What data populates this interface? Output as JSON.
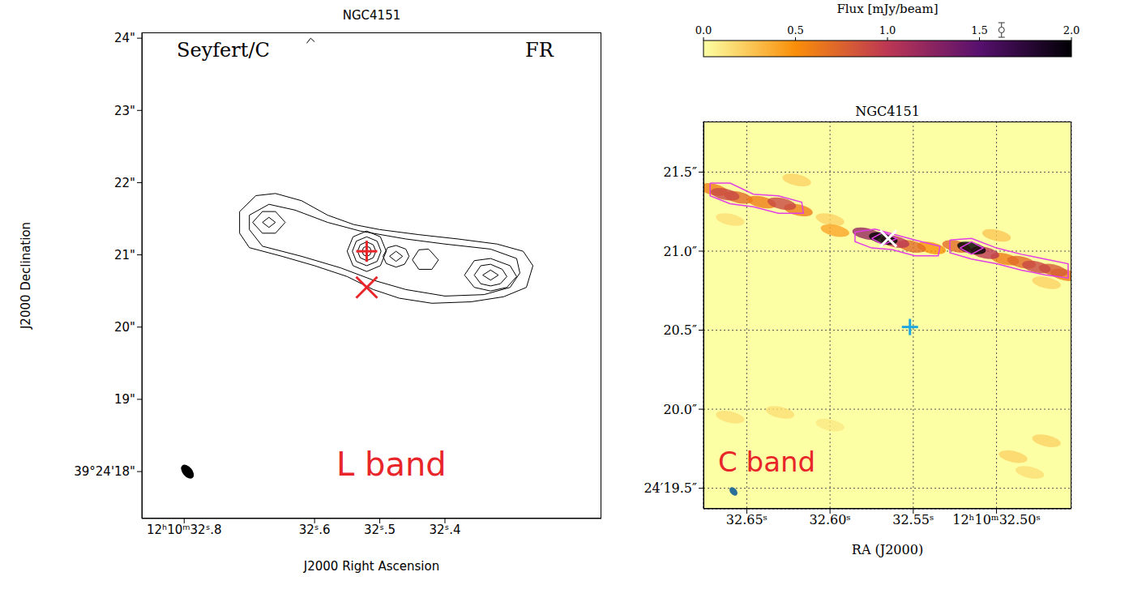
{
  "chart_data": [
    {
      "type": "contour",
      "title": "NGC4151",
      "annotations": [
        "Seyfert/C",
        "FR",
        "L band"
      ],
      "x_label": "J2000 Right Ascension",
      "y_label": "J2000 Declination",
      "xlim": [
        32.865,
        32.16
      ],
      "ylim": [
        17.35,
        24.08
      ],
      "xticks": [
        {
          "value": 32.8,
          "label": "12ʰ10ᵐ32ˢ.8"
        },
        {
          "value": 32.6,
          "label": "32ˢ.6"
        },
        {
          "value": 32.5,
          "label": "32ˢ.5"
        },
        {
          "value": 32.4,
          "label": "32ˢ.4"
        }
      ],
      "yticks": [
        {
          "value": 18,
          "label": "39°24'18\""
        },
        {
          "value": 19,
          "label": "19\""
        },
        {
          "value": 20,
          "label": "20\""
        },
        {
          "value": 21,
          "label": "21\""
        },
        {
          "value": 22,
          "label": "22\""
        },
        {
          "value": 23,
          "label": "23\""
        },
        {
          "value": 24,
          "label": "24\""
        }
      ],
      "color": "#000000",
      "contours": [
        [
          [
            32.715,
            21.6
          ],
          [
            32.69,
            21.82
          ],
          [
            32.66,
            21.85
          ],
          [
            32.62,
            21.75
          ],
          [
            32.58,
            21.55
          ],
          [
            32.54,
            21.42
          ],
          [
            32.5,
            21.35
          ],
          [
            32.44,
            21.28
          ],
          [
            32.38,
            21.22
          ],
          [
            32.32,
            21.15
          ],
          [
            32.28,
            21.05
          ],
          [
            32.265,
            20.85
          ],
          [
            32.275,
            20.55
          ],
          [
            32.31,
            20.42
          ],
          [
            32.36,
            20.35
          ],
          [
            32.42,
            20.33
          ],
          [
            32.47,
            20.4
          ],
          [
            32.51,
            20.52
          ],
          [
            32.55,
            20.7
          ],
          [
            32.6,
            20.85
          ],
          [
            32.65,
            20.98
          ],
          [
            32.7,
            21.1
          ],
          [
            32.715,
            21.3
          ],
          [
            32.715,
            21.6
          ]
        ],
        [
          [
            32.7,
            21.55
          ],
          [
            32.67,
            21.7
          ],
          [
            32.63,
            21.62
          ],
          [
            32.58,
            21.45
          ],
          [
            32.53,
            21.33
          ],
          [
            32.46,
            21.22
          ],
          [
            32.4,
            21.15
          ],
          [
            32.33,
            21.08
          ],
          [
            32.29,
            20.95
          ],
          [
            32.285,
            20.75
          ],
          [
            32.3,
            20.55
          ],
          [
            32.34,
            20.45
          ],
          [
            32.4,
            20.43
          ],
          [
            32.46,
            20.52
          ],
          [
            32.51,
            20.65
          ],
          [
            32.56,
            20.82
          ],
          [
            32.62,
            20.98
          ],
          [
            32.68,
            21.12
          ],
          [
            32.7,
            21.35
          ],
          [
            32.7,
            21.55
          ]
        ],
        [
          [
            32.695,
            21.45
          ],
          [
            32.68,
            21.6
          ],
          [
            32.66,
            21.6
          ],
          [
            32.645,
            21.45
          ],
          [
            32.66,
            21.3
          ],
          [
            32.68,
            21.3
          ],
          [
            32.695,
            21.45
          ]
        ],
        [
          [
            32.68,
            21.45
          ],
          [
            32.67,
            21.52
          ],
          [
            32.66,
            21.45
          ],
          [
            32.67,
            21.38
          ],
          [
            32.68,
            21.45
          ]
        ],
        [
          [
            32.55,
            21.05
          ],
          [
            32.541,
            21.25
          ],
          [
            32.52,
            21.33
          ],
          [
            32.499,
            21.25
          ],
          [
            32.49,
            21.05
          ],
          [
            32.499,
            20.85
          ],
          [
            32.52,
            20.77
          ],
          [
            32.541,
            20.85
          ],
          [
            32.55,
            21.05
          ]
        ],
        [
          [
            32.542,
            21.05
          ],
          [
            32.536,
            21.19
          ],
          [
            32.52,
            21.25
          ],
          [
            32.504,
            21.19
          ],
          [
            32.498,
            21.05
          ],
          [
            32.504,
            20.91
          ],
          [
            32.52,
            20.85
          ],
          [
            32.536,
            20.91
          ],
          [
            32.542,
            21.05
          ]
        ],
        [
          [
            32.534,
            21.05
          ],
          [
            32.53,
            21.14
          ],
          [
            32.52,
            21.18
          ],
          [
            32.51,
            21.14
          ],
          [
            32.506,
            21.05
          ],
          [
            32.51,
            20.96
          ],
          [
            32.52,
            20.92
          ],
          [
            32.53,
            20.96
          ],
          [
            32.534,
            21.05
          ]
        ],
        [
          [
            32.527,
            21.05
          ],
          [
            32.525,
            21.1
          ],
          [
            32.52,
            21.12
          ],
          [
            32.515,
            21.1
          ],
          [
            32.513,
            21.05
          ],
          [
            32.515,
            21.0
          ],
          [
            32.52,
            20.98
          ],
          [
            32.525,
            21.0
          ],
          [
            32.527,
            21.05
          ]
        ],
        [
          [
            32.495,
            20.98
          ],
          [
            32.488,
            21.1
          ],
          [
            32.475,
            21.13
          ],
          [
            32.46,
            21.08
          ],
          [
            32.455,
            20.98
          ],
          [
            32.462,
            20.87
          ],
          [
            32.475,
            20.83
          ],
          [
            32.49,
            20.88
          ],
          [
            32.495,
            20.98
          ]
        ],
        [
          [
            32.485,
            20.98
          ],
          [
            32.475,
            21.05
          ],
          [
            32.465,
            20.98
          ],
          [
            32.475,
            20.91
          ],
          [
            32.485,
            20.98
          ]
        ],
        [
          [
            32.45,
            20.93
          ],
          [
            32.44,
            21.07
          ],
          [
            32.425,
            21.08
          ],
          [
            32.41,
            20.93
          ],
          [
            32.42,
            20.8
          ],
          [
            32.44,
            20.8
          ],
          [
            32.45,
            20.93
          ]
        ],
        [
          [
            32.37,
            20.72
          ],
          [
            32.355,
            20.92
          ],
          [
            32.33,
            20.95
          ],
          [
            32.3,
            20.85
          ],
          [
            32.29,
            20.7
          ],
          [
            32.305,
            20.55
          ],
          [
            32.33,
            20.5
          ],
          [
            32.355,
            20.55
          ],
          [
            32.37,
            20.72
          ]
        ],
        [
          [
            32.355,
            20.72
          ],
          [
            32.345,
            20.85
          ],
          [
            32.33,
            20.87
          ],
          [
            32.312,
            20.8
          ],
          [
            32.305,
            20.7
          ],
          [
            32.315,
            20.6
          ],
          [
            32.33,
            20.57
          ],
          [
            32.345,
            20.6
          ],
          [
            32.355,
            20.72
          ]
        ],
        [
          [
            32.342,
            20.72
          ],
          [
            32.33,
            20.79
          ],
          [
            32.318,
            20.72
          ],
          [
            32.33,
            20.65
          ],
          [
            32.342,
            20.72
          ]
        ],
        [
          [
            32.612,
            23.93
          ],
          [
            32.606,
            24.0
          ],
          [
            32.6,
            23.95
          ]
        ]
      ],
      "markers": [
        {
          "x": 32.52,
          "y": 21.05,
          "marker": "plus",
          "color": "#e8262a"
        },
        {
          "x": 32.52,
          "y": 20.55,
          "marker": "x",
          "color": "#e8262a"
        }
      ],
      "beam": {
        "x": 32.795,
        "y": 18.0,
        "color": "#000000"
      }
    },
    {
      "type": "image",
      "title": "NGC4151",
      "annotations": [
        "C band"
      ],
      "x_label": "RA (J2000)",
      "xlim": [
        32.676,
        32.455
      ],
      "ylim": [
        19.37,
        21.82
      ],
      "xticks": [
        {
          "value": 32.65,
          "label": "32.65ˢ"
        },
        {
          "value": 32.6,
          "label": "32.60ˢ"
        },
        {
          "value": 32.55,
          "label": "32.55ˢ"
        },
        {
          "value": 32.5,
          "label": "12ʰ10ᵐ32.50ˢ"
        }
      ],
      "yticks": [
        {
          "value": 19.5,
          "label": "24′19.5″"
        },
        {
          "value": 20.0,
          "label": "20.0″"
        },
        {
          "value": 20.5,
          "label": "20.5″"
        },
        {
          "value": 21.0,
          "label": "21.0″"
        },
        {
          "value": 21.5,
          "label": "21.5″"
        }
      ],
      "grid": true,
      "colorbar": {
        "label": "Flux [mJy/beam]",
        "range": [
          0,
          2
        ],
        "ticks": [
          {
            "value": 0,
            "label": "0.0"
          },
          {
            "value": 0.5,
            "label": "0.5"
          },
          {
            "value": 1,
            "label": "1.0"
          },
          {
            "value": 1.5,
            "label": "1.5"
          },
          {
            "value": 2,
            "label": "2.0"
          }
        ],
        "noise": 1.62
      },
      "emission": [
        [
          32.66,
          19.95,
          0.15
        ],
        [
          32.63,
          19.98,
          0.15
        ],
        [
          32.6,
          19.9,
          0.1
        ],
        [
          32.49,
          19.7,
          0.2
        ],
        [
          32.47,
          19.8,
          0.2
        ],
        [
          32.48,
          19.6,
          0.15
        ],
        [
          32.62,
          21.45,
          0.2
        ],
        [
          32.6,
          21.2,
          0.2
        ],
        [
          32.5,
          21.1,
          0.25
        ],
        [
          32.47,
          20.8,
          0.2
        ],
        [
          32.66,
          21.2,
          0.15
        ],
        [
          32.597,
          21.13,
          0.4
        ],
        [
          32.539,
          21.02,
          0.5
        ],
        [
          32.459,
          20.85,
          0.6
        ],
        [
          32.655,
          21.34,
          0.7
        ],
        [
          32.641,
          21.31,
          0.6
        ],
        [
          32.619,
          21.26,
          0.6
        ],
        [
          32.551,
          21.03,
          0.7
        ],
        [
          32.524,
          21.03,
          0.7
        ],
        [
          32.495,
          20.95,
          0.6
        ],
        [
          32.485,
          20.93,
          0.7
        ],
        [
          32.466,
          20.88,
          0.8
        ],
        [
          32.67,
          21.39,
          0.6
        ],
        [
          32.663,
          21.36,
          0.9
        ],
        [
          32.629,
          21.3,
          0.9
        ],
        [
          32.476,
          20.9,
          0.9
        ],
        [
          32.561,
          21.06,
          1.0
        ],
        [
          32.507,
          20.99,
          1.0
        ],
        [
          32.578,
          21.11,
          1.2
        ],
        [
          32.568,
          21.08,
          2.0
        ],
        [
          32.515,
          21.02,
          2.0
        ]
      ],
      "color": "#e23ee6",
      "contours": [
        [
          [
            32.672,
            21.43
          ],
          [
            32.66,
            21.43
          ],
          [
            32.646,
            21.36
          ],
          [
            32.631,
            21.35
          ],
          [
            32.617,
            21.31
          ],
          [
            32.616,
            21.24
          ],
          [
            32.631,
            21.24
          ],
          [
            32.646,
            21.28
          ],
          [
            32.66,
            21.3
          ],
          [
            32.672,
            21.35
          ],
          [
            32.672,
            21.43
          ]
        ],
        [
          [
            32.585,
            21.12
          ],
          [
            32.573,
            21.14
          ],
          [
            32.563,
            21.11
          ],
          [
            32.549,
            21.07
          ],
          [
            32.534,
            21.03
          ],
          [
            32.535,
            20.97
          ],
          [
            32.549,
            20.97
          ],
          [
            32.563,
            21.01
          ],
          [
            32.575,
            21.02
          ],
          [
            32.585,
            21.06
          ],
          [
            32.585,
            21.12
          ]
        ],
        [
          [
            32.528,
            21.07
          ],
          [
            32.515,
            21.08
          ],
          [
            32.5,
            21.02
          ],
          [
            32.485,
            20.98
          ],
          [
            32.471,
            20.95
          ],
          [
            32.457,
            20.92
          ],
          [
            32.457,
            20.83
          ],
          [
            32.471,
            20.85
          ],
          [
            32.485,
            20.88
          ],
          [
            32.5,
            20.92
          ],
          [
            32.515,
            20.95
          ],
          [
            32.528,
            20.99
          ],
          [
            32.528,
            21.07
          ]
        ],
        [
          [
            32.575,
            21.08
          ],
          [
            32.568,
            21.12
          ],
          [
            32.56,
            21.08
          ],
          [
            32.568,
            21.04
          ],
          [
            32.575,
            21.08
          ]
        ],
        [
          [
            32.522,
            21.02
          ],
          [
            32.515,
            21.06
          ],
          [
            32.508,
            21.02
          ],
          [
            32.515,
            20.98
          ],
          [
            32.522,
            21.02
          ]
        ]
      ],
      "markers": [
        {
          "x": 32.565,
          "y": 21.08,
          "marker": "x",
          "color": "#ffffff"
        },
        {
          "x": 32.552,
          "y": 20.52,
          "marker": "plus",
          "color": "#1ea7e1"
        }
      ],
      "beam": {
        "x": 32.658,
        "y": 19.48,
        "color": "#2a6f97"
      }
    }
  ]
}
